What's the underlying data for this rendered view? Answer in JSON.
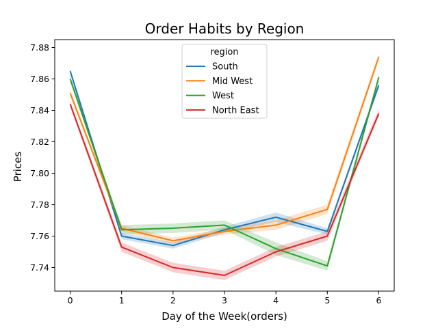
{
  "chart_data": {
    "type": "line",
    "title": "Order Habits by Region",
    "xlabel": "Day of the Week(orders)",
    "ylabel": "Prices",
    "x": [
      0,
      1,
      2,
      3,
      4,
      5,
      6
    ],
    "xlim": [
      -0.3,
      6.3
    ],
    "ylim": [
      7.725,
      7.885
    ],
    "yticks": [
      7.74,
      7.76,
      7.78,
      7.8,
      7.82,
      7.84,
      7.86,
      7.88
    ],
    "ytick_labels": [
      "7.74",
      "7.76",
      "7.78",
      "7.80",
      "7.82",
      "7.84",
      "7.86",
      "7.88"
    ],
    "xticks": [
      0,
      1,
      2,
      3,
      4,
      5,
      6
    ],
    "xtick_labels": [
      "0",
      "1",
      "2",
      "3",
      "4",
      "5",
      "6"
    ],
    "grid": false,
    "legend": {
      "title": "region",
      "placement": "top-center"
    },
    "series": [
      {
        "name": "South",
        "color": "#1f77b4",
        "values": [
          7.865,
          7.76,
          7.754,
          7.764,
          7.772,
          7.763,
          7.856
        ],
        "ci_lower": [
          7.863,
          7.758,
          7.752,
          7.762,
          7.769,
          7.761,
          7.854
        ],
        "ci_upper": [
          7.867,
          7.762,
          7.756,
          7.766,
          7.775,
          7.765,
          7.858
        ]
      },
      {
        "name": "Mid West",
        "color": "#ff7f0e",
        "values": [
          7.851,
          7.765,
          7.757,
          7.763,
          7.767,
          7.777,
          7.874
        ],
        "ci_lower": [
          7.849,
          7.763,
          7.755,
          7.761,
          7.764,
          7.774,
          7.872
        ],
        "ci_upper": [
          7.853,
          7.767,
          7.759,
          7.765,
          7.77,
          7.78,
          7.876
        ]
      },
      {
        "name": "West",
        "color": "#2ca02c",
        "values": [
          7.86,
          7.764,
          7.765,
          7.767,
          7.752,
          7.741,
          7.861
        ],
        "ci_lower": [
          7.858,
          7.761,
          7.762,
          7.764,
          7.748,
          7.738,
          7.859
        ],
        "ci_upper": [
          7.862,
          7.767,
          7.768,
          7.77,
          7.756,
          7.744,
          7.863
        ]
      },
      {
        "name": "North East",
        "color": "#d62728",
        "values": [
          7.844,
          7.753,
          7.74,
          7.735,
          7.75,
          7.76,
          7.838
        ],
        "ci_lower": [
          7.842,
          7.75,
          7.737,
          7.732,
          7.747,
          7.757,
          7.836
        ],
        "ci_upper": [
          7.846,
          7.756,
          7.743,
          7.738,
          7.753,
          7.763,
          7.841
        ]
      }
    ]
  }
}
